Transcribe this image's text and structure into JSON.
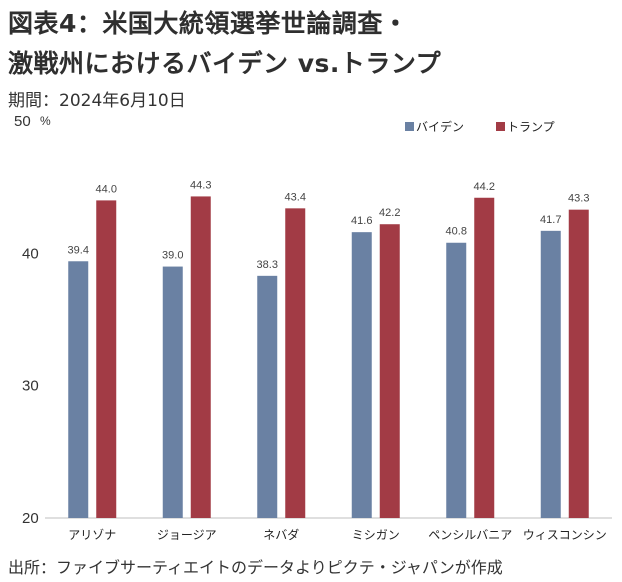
{
  "figure": {
    "title_line1": "図表4：米国大統領選挙世論調査・",
    "title_line2": "激戦州におけるバイデン vs.トランプ",
    "period": "期間：2024年6月10日",
    "source": "出所：ファイブサーティエイトのデータよりピクテ・ジャパンが作成"
  },
  "chart_data": {
    "type": "bar",
    "categories": [
      "アリゾナ",
      "ジョージア",
      "ネバダ",
      "ミシガン",
      "ペンシルバニア",
      "ウィスコンシン"
    ],
    "series": [
      {
        "name": "バイデン",
        "color": "#6a81a3",
        "values": [
          39.4,
          39.0,
          38.3,
          41.6,
          40.8,
          41.7
        ]
      },
      {
        "name": "トランプ",
        "color": "#a23b45",
        "values": [
          44.0,
          44.3,
          43.4,
          42.2,
          44.2,
          43.3
        ]
      }
    ],
    "ylim": [
      20,
      50
    ],
    "yticks": [
      "20",
      "30",
      "40",
      "50"
    ],
    "yunit": "%",
    "legend_position": "top-right",
    "grid": false
  }
}
